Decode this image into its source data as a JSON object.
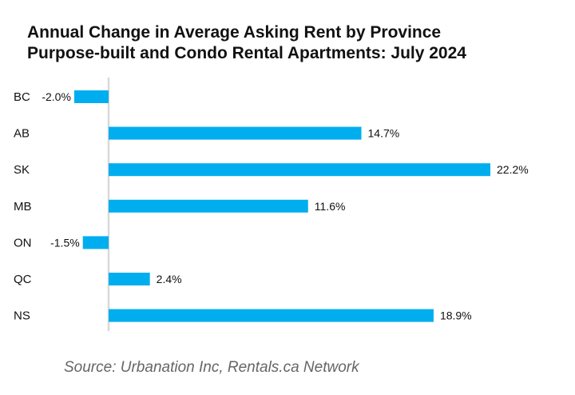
{
  "chart_data": {
    "type": "bar",
    "orientation": "horizontal",
    "title": "Annual Change in Average Asking Rent by Province",
    "subtitle": "Purpose-built and Condo Rental Apartments: July 2024",
    "categories": [
      "BC",
      "AB",
      "SK",
      "MB",
      "ON",
      "QC",
      "NS"
    ],
    "values": [
      -2.0,
      14.7,
      22.2,
      11.6,
      -1.5,
      2.4,
      18.9
    ],
    "value_labels": [
      "-2.0%",
      "14.7%",
      "22.2%",
      "11.6%",
      "-1.5%",
      "2.4%",
      "18.9%"
    ],
    "xlim": [
      -2.0,
      22.2
    ],
    "grid": false,
    "legend": "none",
    "bar_color": "#00AEEF",
    "axis_color": "#D9D9D9"
  },
  "source": "Source: Urbanation Inc, Rentals.ca Network"
}
